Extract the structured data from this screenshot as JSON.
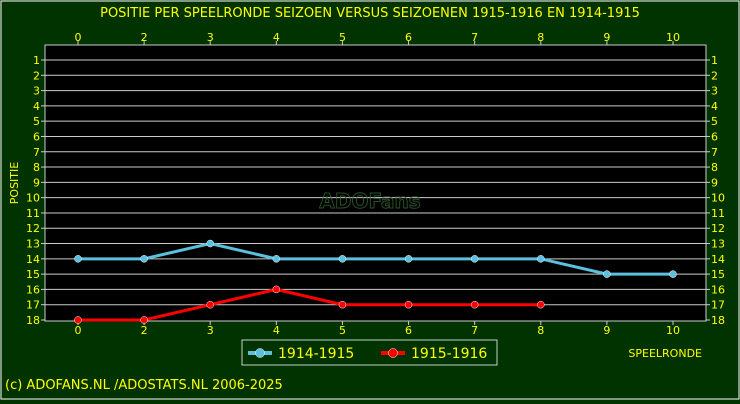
{
  "chart_data": {
    "type": "line",
    "title": "POSITIE PER SPEELRONDE SEIZOEN  VERSUS SEIZOENEN 1915-1916 EN 1914-1915",
    "ylabel": "POSITIE",
    "xlabel": "SPEELRONDE",
    "x_categories": [
      "0",
      "2",
      "3",
      "4",
      "5",
      "6",
      "7",
      "8",
      "9",
      "10"
    ],
    "y_ticks": [
      "1",
      "2",
      "3",
      "4",
      "5",
      "6",
      "7",
      "8",
      "9",
      "10",
      "11",
      "12",
      "13",
      "14",
      "15",
      "16",
      "17",
      "18"
    ],
    "ylim": [
      1,
      18
    ],
    "y_inverted": true,
    "grid": true,
    "legend_position": "bottom-center",
    "series": [
      {
        "name": "1914-1915",
        "color": "#5bc0de",
        "values": [
          14,
          14,
          13,
          14,
          14,
          14,
          14,
          14,
          15,
          15
        ]
      },
      {
        "name": "1915-1916",
        "color": "#ff0000",
        "values": [
          18,
          18,
          17,
          16,
          17,
          17,
          17,
          17,
          null,
          null
        ]
      }
    ],
    "watermark": "ADOFans",
    "footer": "(c) ADOFANS.NL /ADOSTATS.NL 2006-2025",
    "colors": {
      "background": "#003300",
      "plot": "#000000",
      "grid": "#cccccc",
      "text": "#ffff00"
    }
  }
}
